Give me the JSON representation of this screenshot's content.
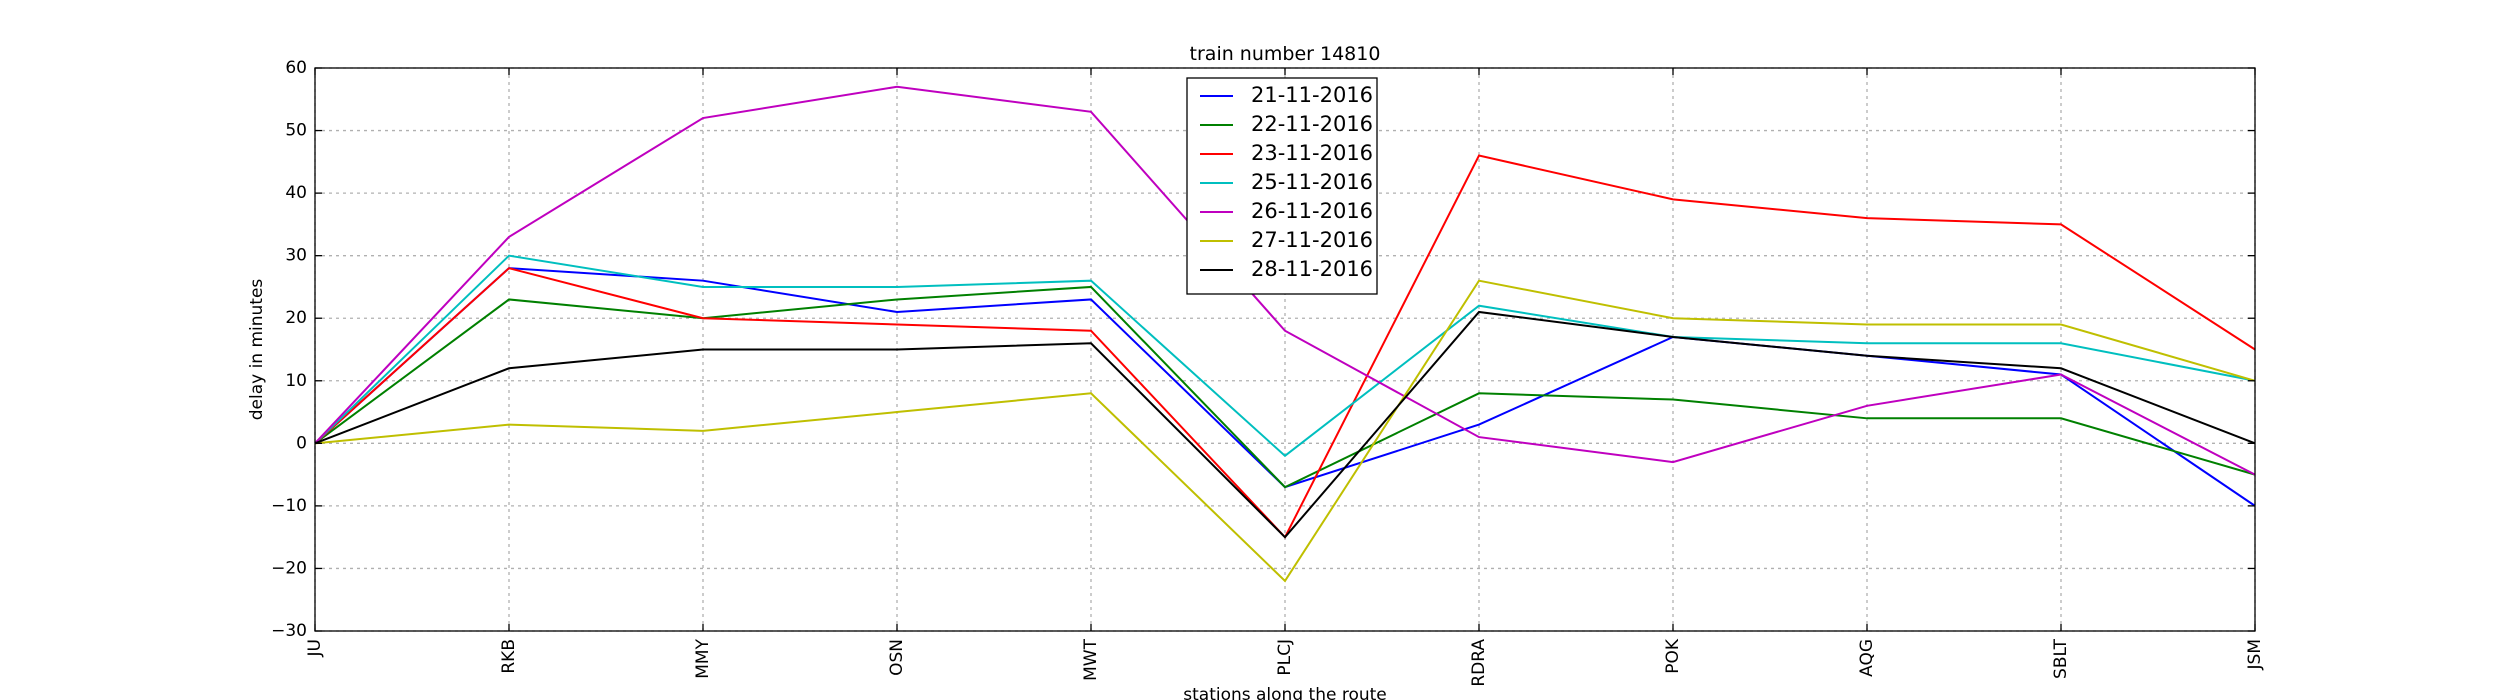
{
  "chart_data": {
    "type": "line",
    "title": "train number 14810",
    "xlabel": "stations along the route",
    "ylabel": "delay in minutes",
    "categories": [
      "JU",
      "RKB",
      "MMY",
      "OSN",
      "MWT",
      "PLCJ",
      "RDRA",
      "POK",
      "AQG",
      "SBLT",
      "JSM"
    ],
    "ylim": [
      -30,
      60
    ],
    "yticks": [
      -30,
      -20,
      -10,
      0,
      10,
      20,
      30,
      40,
      50,
      60
    ],
    "ytick_labels": [
      "−30",
      "−20",
      "−10",
      "0",
      "10",
      "20",
      "30",
      "40",
      "50",
      "60"
    ],
    "grid": true,
    "legend_position": "top-center",
    "series": [
      {
        "name": "21-11-2016",
        "color": "#0000ff",
        "values": [
          0,
          28,
          26,
          21,
          23,
          -7,
          3,
          17,
          14,
          11,
          -10
        ]
      },
      {
        "name": "22-11-2016",
        "color": "#008000",
        "values": [
          0,
          23,
          20,
          23,
          25,
          -7,
          8,
          7,
          4,
          4,
          -5
        ]
      },
      {
        "name": "23-11-2016",
        "color": "#ff0000",
        "values": [
          0,
          28,
          20,
          19,
          18,
          -15,
          46,
          39,
          36,
          35,
          15
        ]
      },
      {
        "name": "25-11-2016",
        "color": "#00bfbf",
        "values": [
          0,
          30,
          25,
          25,
          26,
          -2,
          22,
          17,
          16,
          16,
          10
        ]
      },
      {
        "name": "26-11-2016",
        "color": "#bf00bf",
        "values": [
          0,
          33,
          52,
          57,
          53,
          18,
          1,
          -3,
          6,
          11,
          -5
        ]
      },
      {
        "name": "27-11-2016",
        "color": "#bfbf00",
        "values": [
          0,
          3,
          2,
          5,
          8,
          -22,
          26,
          20,
          19,
          19,
          10
        ]
      },
      {
        "name": "28-11-2016",
        "color": "#000000",
        "values": [
          0,
          12,
          15,
          15,
          16,
          -15,
          21,
          17,
          14,
          12,
          0
        ]
      }
    ]
  }
}
